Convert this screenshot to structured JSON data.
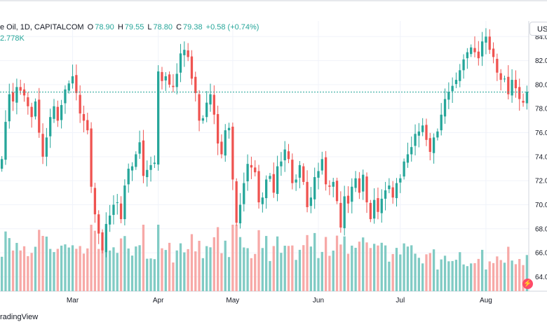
{
  "header": {
    "symbol": "e Oil, 1D, CAPITALCOM",
    "open_label": "O",
    "open": "78.90",
    "high_label": "H",
    "high": "79.55",
    "low_label": "L",
    "low": "78.80",
    "close_label": "C",
    "close": "79.38",
    "change": "+0.58 (+0.74%)",
    "volume": "2.778K",
    "currency_button": "USD"
  },
  "footer": {
    "brand": "radingView"
  },
  "colors": {
    "up": "#26a69a",
    "down": "#ef5350",
    "up_vol": "#80cbc4",
    "down_vol": "#f7a9a7",
    "price_line": "#26a69a"
  },
  "chart_data": {
    "type": "candlestick",
    "x_ticks": [
      {
        "label": "Mar",
        "index": 19
      },
      {
        "label": "Apr",
        "index": 42
      },
      {
        "label": "May",
        "index": 62
      },
      {
        "label": "Jun",
        "index": 85
      },
      {
        "label": "Jul",
        "index": 107
      },
      {
        "label": "Aug",
        "index": 130
      }
    ],
    "y_ticks": [
      "64.00",
      "66.00",
      "68.00",
      "70.00",
      "72.00",
      "74.00",
      "76.00",
      "78.00",
      "80.00",
      "82.00",
      "84.00"
    ],
    "ylim": [
      62.8,
      85.3
    ],
    "last_price": 79.38,
    "closes": [
      73.8,
      76.9,
      79.2,
      78.6,
      79.8,
      79.5,
      79.1,
      78.2,
      77.3,
      78.6,
      76.0,
      74.0,
      75.6,
      77.3,
      78.2,
      77.0,
      78.3,
      79.6,
      80.1,
      80.7,
      79.3,
      77.6,
      77.0,
      76.2,
      71.5,
      69.2,
      67.6,
      66.2,
      68.4,
      69.1,
      70.0,
      70.2,
      68.8,
      71.6,
      73.0,
      73.2,
      74.2,
      75.2,
      72.4,
      72.9,
      73.3,
      73.5,
      81.1,
      80.3,
      80.7,
      80.0,
      79.8,
      80.9,
      82.6,
      82.9,
      82.3,
      80.5,
      79.3,
      77.0,
      77.2,
      78.5,
      79.2,
      77.5,
      75.1,
      74.2,
      76.2,
      76.4,
      72.1,
      68.5,
      70.0,
      71.8,
      73.4,
      73.1,
      72.7,
      70.2,
      70.6,
      72.1,
      72.4,
      71.0,
      73.2,
      73.6,
      74.6,
      73.8,
      71.8,
      72.1,
      73.3,
      71.9,
      69.8,
      70.6,
      72.3,
      72.8,
      73.8,
      71.7,
      71.5,
      71.9,
      70.3,
      68.1,
      70.7,
      70.1,
      71.5,
      72.2,
      71.0,
      72.5,
      70.2,
      68.8,
      70.4,
      69.4,
      70.5,
      71.2,
      71.6,
      70.6,
      71.8,
      72.2,
      73.6,
      74.2,
      74.8,
      75.9,
      76.1,
      76.6,
      75.4,
      74.4,
      75.6,
      76.1,
      77.5,
      78.8,
      79.4,
      79.9,
      80.4,
      81.2,
      82.1,
      82.7,
      83.1,
      82.7,
      82.2,
      83.6,
      84.0,
      82.9,
      82.3,
      81.0,
      80.4,
      80.5,
      79.2,
      80.4,
      79.7,
      78.8,
      78.5,
      79.4
    ]
  }
}
